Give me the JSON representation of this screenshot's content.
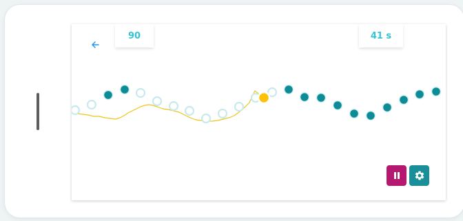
{
  "hud": {
    "score": "90",
    "timer": "41 s"
  },
  "icons": {
    "back": "arrow-left-icon",
    "pause": "pause-icon",
    "settings": "gear-icon"
  },
  "colors": {
    "accent_text": "#36c3d1",
    "filled_dot": "#0e8c96",
    "open_dot_stroke": "#c9e9ee",
    "trace": "#f0c419",
    "player": "#ffc107",
    "pause_button": "#b5196f",
    "settings_button": "#1a8f99"
  }
}
